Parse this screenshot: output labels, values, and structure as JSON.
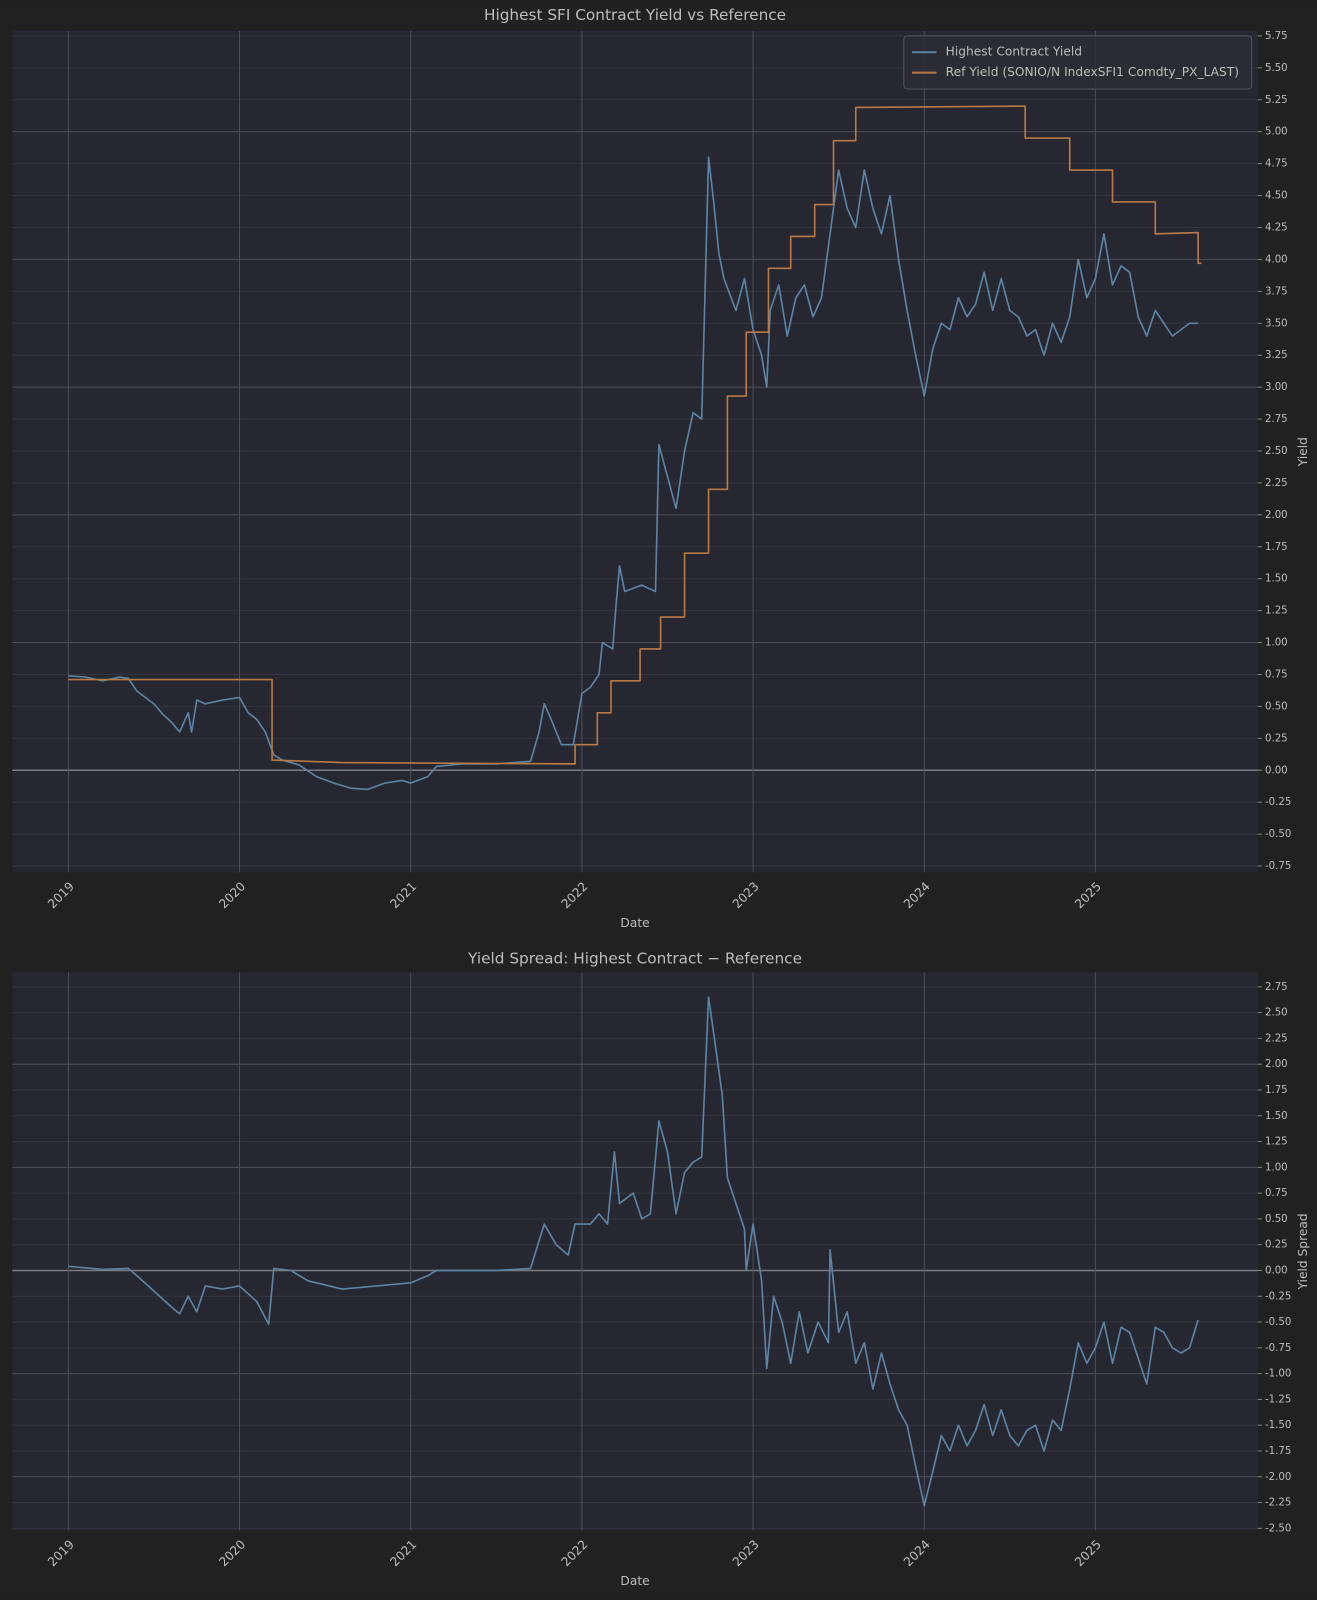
{
  "chart_data": [
    {
      "type": "line",
      "title": "Highest SFI Contract Yield vs Reference",
      "x_label": "Date",
      "y_label": "Yield",
      "xlim": [
        2018.672,
        2025.949
      ],
      "xticks": [
        2019,
        2020,
        2021,
        2022,
        2023,
        2024,
        2025
      ],
      "ylim": [
        -0.8,
        5.79
      ],
      "yticks": [
        -0.75,
        {
          "value": -0.5,
          "label": "-0.50"
        },
        -0.25,
        {
          "value": 0,
          "label": "0.00"
        },
        0.25,
        {
          "value": 0.5,
          "label": "0.50"
        },
        0.75,
        {
          "value": 1,
          "label": "1.00"
        },
        1.25,
        {
          "value": 1.5,
          "label": "1.50"
        },
        1.75,
        {
          "value": 2,
          "label": "2.00"
        },
        2.25,
        {
          "value": 2.5,
          "label": "2.50"
        },
        2.75,
        {
          "value": 3,
          "label": "3.00"
        },
        3.25,
        {
          "value": 3.5,
          "label": "3.50"
        },
        3.75,
        {
          "value": 4,
          "label": "4.00"
        },
        4.25,
        {
          "value": 4.5,
          "label": "4.50"
        },
        4.75,
        {
          "value": 5,
          "label": "5.00"
        },
        5.25,
        {
          "value": 5.5,
          "label": "5.50"
        },
        5.75
      ],
      "grid": true,
      "legend": "upper right",
      "series": [
        {
          "name": "Highest Contract Yield",
          "color": "#5b84a6",
          "x": [
            2019.0,
            2019.1,
            2019.2,
            2019.3,
            2019.35,
            2019.4,
            2019.5,
            2019.55,
            2019.6,
            2019.65,
            2019.7,
            2019.72,
            2019.75,
            2019.8,
            2019.9,
            2020.0,
            2020.05,
            2020.1,
            2020.15,
            2020.2,
            2020.25,
            2020.35,
            2020.45,
            2020.55,
            2020.65,
            2020.75,
            2020.85,
            2020.95,
            2021.0,
            2021.1,
            2021.15,
            2021.3,
            2021.5,
            2021.7,
            2021.75,
            2021.78,
            2021.82,
            2021.88,
            2021.95,
            2022.0,
            2022.05,
            2022.1,
            2022.12,
            2022.18,
            2022.2,
            2022.22,
            2022.25,
            2022.35,
            2022.43,
            2022.45,
            2022.5,
            2022.55,
            2022.6,
            2022.65,
            2022.7,
            2022.74,
            2022.77,
            2022.8,
            2022.83,
            2022.9,
            2022.95,
            2023.0,
            2023.05,
            2023.08,
            2023.1,
            2023.15,
            2023.2,
            2023.25,
            2023.3,
            2023.35,
            2023.4,
            2023.45,
            2023.5,
            2023.55,
            2023.6,
            2023.65,
            2023.7,
            2023.75,
            2023.8,
            2023.85,
            2023.9,
            2023.95,
            2024.0,
            2024.05,
            2024.1,
            2024.15,
            2024.2,
            2024.25,
            2024.3,
            2024.35,
            2024.4,
            2024.45,
            2024.5,
            2024.55,
            2024.6,
            2024.65,
            2024.7,
            2024.75,
            2024.8,
            2024.85,
            2024.9,
            2024.95,
            2025.0,
            2025.05,
            2025.1,
            2025.15,
            2025.2,
            2025.25,
            2025.3,
            2025.35,
            2025.4,
            2025.45,
            2025.5,
            2025.55,
            2025.6
          ],
          "values": [
            0.74,
            0.73,
            0.7,
            0.73,
            0.72,
            0.62,
            0.52,
            0.44,
            0.38,
            0.3,
            0.45,
            0.3,
            0.55,
            0.52,
            0.55,
            0.57,
            0.45,
            0.4,
            0.3,
            0.12,
            0.08,
            0.04,
            -0.05,
            -0.1,
            -0.14,
            -0.15,
            -0.1,
            -0.08,
            -0.1,
            -0.05,
            0.03,
            0.05,
            0.05,
            0.07,
            0.3,
            0.52,
            0.4,
            0.2,
            0.2,
            0.6,
            0.65,
            0.75,
            1.0,
            0.95,
            1.3,
            1.6,
            1.4,
            1.45,
            1.4,
            2.55,
            2.3,
            2.05,
            2.5,
            2.8,
            2.75,
            4.8,
            4.45,
            4.05,
            3.85,
            3.6,
            3.85,
            3.45,
            3.25,
            3.0,
            3.6,
            3.8,
            3.4,
            3.7,
            3.8,
            3.55,
            3.7,
            4.2,
            4.7,
            4.4,
            4.25,
            4.7,
            4.4,
            4.2,
            4.5,
            4.0,
            3.6,
            3.25,
            2.93,
            3.3,
            3.5,
            3.45,
            3.7,
            3.55,
            3.65,
            3.9,
            3.6,
            3.85,
            3.6,
            3.55,
            3.4,
            3.45,
            3.25,
            3.5,
            3.35,
            3.55,
            4.0,
            3.7,
            3.85,
            4.2,
            3.8,
            3.95,
            3.9,
            3.55,
            3.4,
            3.6,
            3.5,
            3.4,
            3.45,
            3.5,
            3.5
          ]
        },
        {
          "name": "Ref Yield (SONIO/N IndexSFI1 Comdty_PX_LAST)",
          "color": "#b87a45",
          "x": [
            2019.0,
            2020.19,
            2020.19,
            2020.6,
            2021.96,
            2021.96,
            2022.09,
            2022.09,
            2022.17,
            2022.17,
            2022.34,
            2022.34,
            2022.46,
            2022.46,
            2022.6,
            2022.6,
            2022.74,
            2022.74,
            2022.85,
            2022.85,
            2022.96,
            2022.96,
            2023.09,
            2023.09,
            2023.22,
            2023.22,
            2023.36,
            2023.36,
            2023.47,
            2023.47,
            2023.6,
            2023.6,
            2024.59,
            2024.59,
            2024.85,
            2024.85,
            2025.1,
            2025.1,
            2025.35,
            2025.35,
            2025.6,
            2025.6,
            2025.62
          ],
          "values": [
            0.71,
            0.71,
            0.08,
            0.06,
            0.05,
            0.2,
            0.2,
            0.45,
            0.45,
            0.7,
            0.7,
            0.95,
            0.95,
            1.2,
            1.2,
            1.7,
            1.7,
            2.2,
            2.2,
            2.93,
            2.93,
            3.43,
            3.43,
            3.93,
            3.93,
            4.18,
            4.18,
            4.43,
            4.43,
            4.93,
            4.93,
            5.19,
            5.2,
            4.95,
            4.95,
            4.7,
            4.7,
            4.45,
            4.45,
            4.2,
            4.21,
            3.97,
            3.97
          ]
        }
      ]
    },
    {
      "type": "line",
      "title": "Yield Spread: Highest Contract − Reference",
      "x_label": "Date",
      "y_label": "Yield Spread",
      "xlim": [
        2018.672,
        2025.949
      ],
      "xticks": [
        2019,
        2020,
        2021,
        2022,
        2023,
        2024,
        2025
      ],
      "ylim": [
        -2.52,
        2.89
      ],
      "yticks": [
        {
          "value": -2.5,
          "label": "-2.50"
        },
        -2.25,
        {
          "value": -2,
          "label": "-2.00"
        },
        -1.75,
        {
          "value": -1.5,
          "label": "-1.50"
        },
        -1.25,
        {
          "value": -1,
          "label": "-1.00"
        },
        -0.75,
        {
          "value": -0.5,
          "label": "-0.50"
        },
        -0.25,
        {
          "value": 0,
          "label": "0.00"
        },
        0.25,
        {
          "value": 0.5,
          "label": "0.50"
        },
        0.75,
        {
          "value": 1,
          "label": "1.00"
        },
        1.25,
        {
          "value": 1.5,
          "label": "1.50"
        },
        1.75,
        {
          "value": 2,
          "label": "2.00"
        },
        2.25,
        {
          "value": 2.5,
          "label": "2.50"
        },
        2.75
      ],
      "grid": true,
      "series": [
        {
          "color": "#5b84a6",
          "x": [
            2019.0,
            2019.2,
            2019.35,
            2019.4,
            2019.5,
            2019.6,
            2019.65,
            2019.7,
            2019.75,
            2019.8,
            2019.9,
            2020.0,
            2020.1,
            2020.17,
            2020.2,
            2020.3,
            2020.4,
            2020.6,
            2020.8,
            2021.0,
            2021.1,
            2021.15,
            2021.5,
            2021.7,
            2021.78,
            2021.85,
            2021.92,
            2021.96,
            2022.05,
            2022.1,
            2022.15,
            2022.19,
            2022.22,
            2022.3,
            2022.35,
            2022.4,
            2022.45,
            2022.5,
            2022.55,
            2022.6,
            2022.65,
            2022.7,
            2022.74,
            2022.77,
            2022.82,
            2022.85,
            2022.9,
            2022.95,
            2022.96,
            2023.0,
            2023.05,
            2023.08,
            2023.12,
            2023.17,
            2023.22,
            2023.27,
            2023.32,
            2023.38,
            2023.44,
            2023.45,
            2023.5,
            2023.55,
            2023.6,
            2023.65,
            2023.7,
            2023.75,
            2023.8,
            2023.85,
            2023.9,
            2023.95,
            2024.0,
            2024.05,
            2024.1,
            2024.15,
            2024.2,
            2024.25,
            2024.3,
            2024.35,
            2024.4,
            2024.45,
            2024.5,
            2024.55,
            2024.6,
            2024.65,
            2024.7,
            2024.75,
            2024.8,
            2024.85,
            2024.9,
            2024.95,
            2025.0,
            2025.05,
            2025.1,
            2025.15,
            2025.2,
            2025.25,
            2025.3,
            2025.35,
            2025.4,
            2025.45,
            2025.5,
            2025.55,
            2025.6
          ],
          "values": [
            0.04,
            0.01,
            0.02,
            -0.05,
            -0.2,
            -0.35,
            -0.42,
            -0.25,
            -0.4,
            -0.15,
            -0.18,
            -0.15,
            -0.3,
            -0.52,
            0.02,
            0.0,
            -0.1,
            -0.18,
            -0.15,
            -0.12,
            -0.05,
            0.0,
            0.0,
            0.02,
            0.45,
            0.25,
            0.15,
            0.45,
            0.45,
            0.55,
            0.45,
            1.15,
            0.65,
            0.75,
            0.5,
            0.55,
            1.45,
            1.15,
            0.55,
            0.95,
            1.05,
            1.1,
            2.65,
            2.3,
            1.7,
            0.9,
            0.65,
            0.4,
            0.0,
            0.45,
            -0.1,
            -0.95,
            -0.25,
            -0.5,
            -0.9,
            -0.4,
            -0.8,
            -0.5,
            -0.7,
            0.2,
            -0.6,
            -0.4,
            -0.9,
            -0.7,
            -1.15,
            -0.8,
            -1.1,
            -1.35,
            -1.5,
            -1.9,
            -2.28,
            -1.95,
            -1.6,
            -1.75,
            -1.5,
            -1.7,
            -1.55,
            -1.3,
            -1.6,
            -1.35,
            -1.6,
            -1.7,
            -1.55,
            -1.5,
            -1.75,
            -1.45,
            -1.55,
            -1.15,
            -0.7,
            -0.9,
            -0.75,
            -0.5,
            -0.9,
            -0.55,
            -0.6,
            -0.85,
            -1.1,
            -0.55,
            -0.6,
            -0.75,
            -0.8,
            -0.75,
            -0.48
          ]
        }
      ]
    }
  ]
}
